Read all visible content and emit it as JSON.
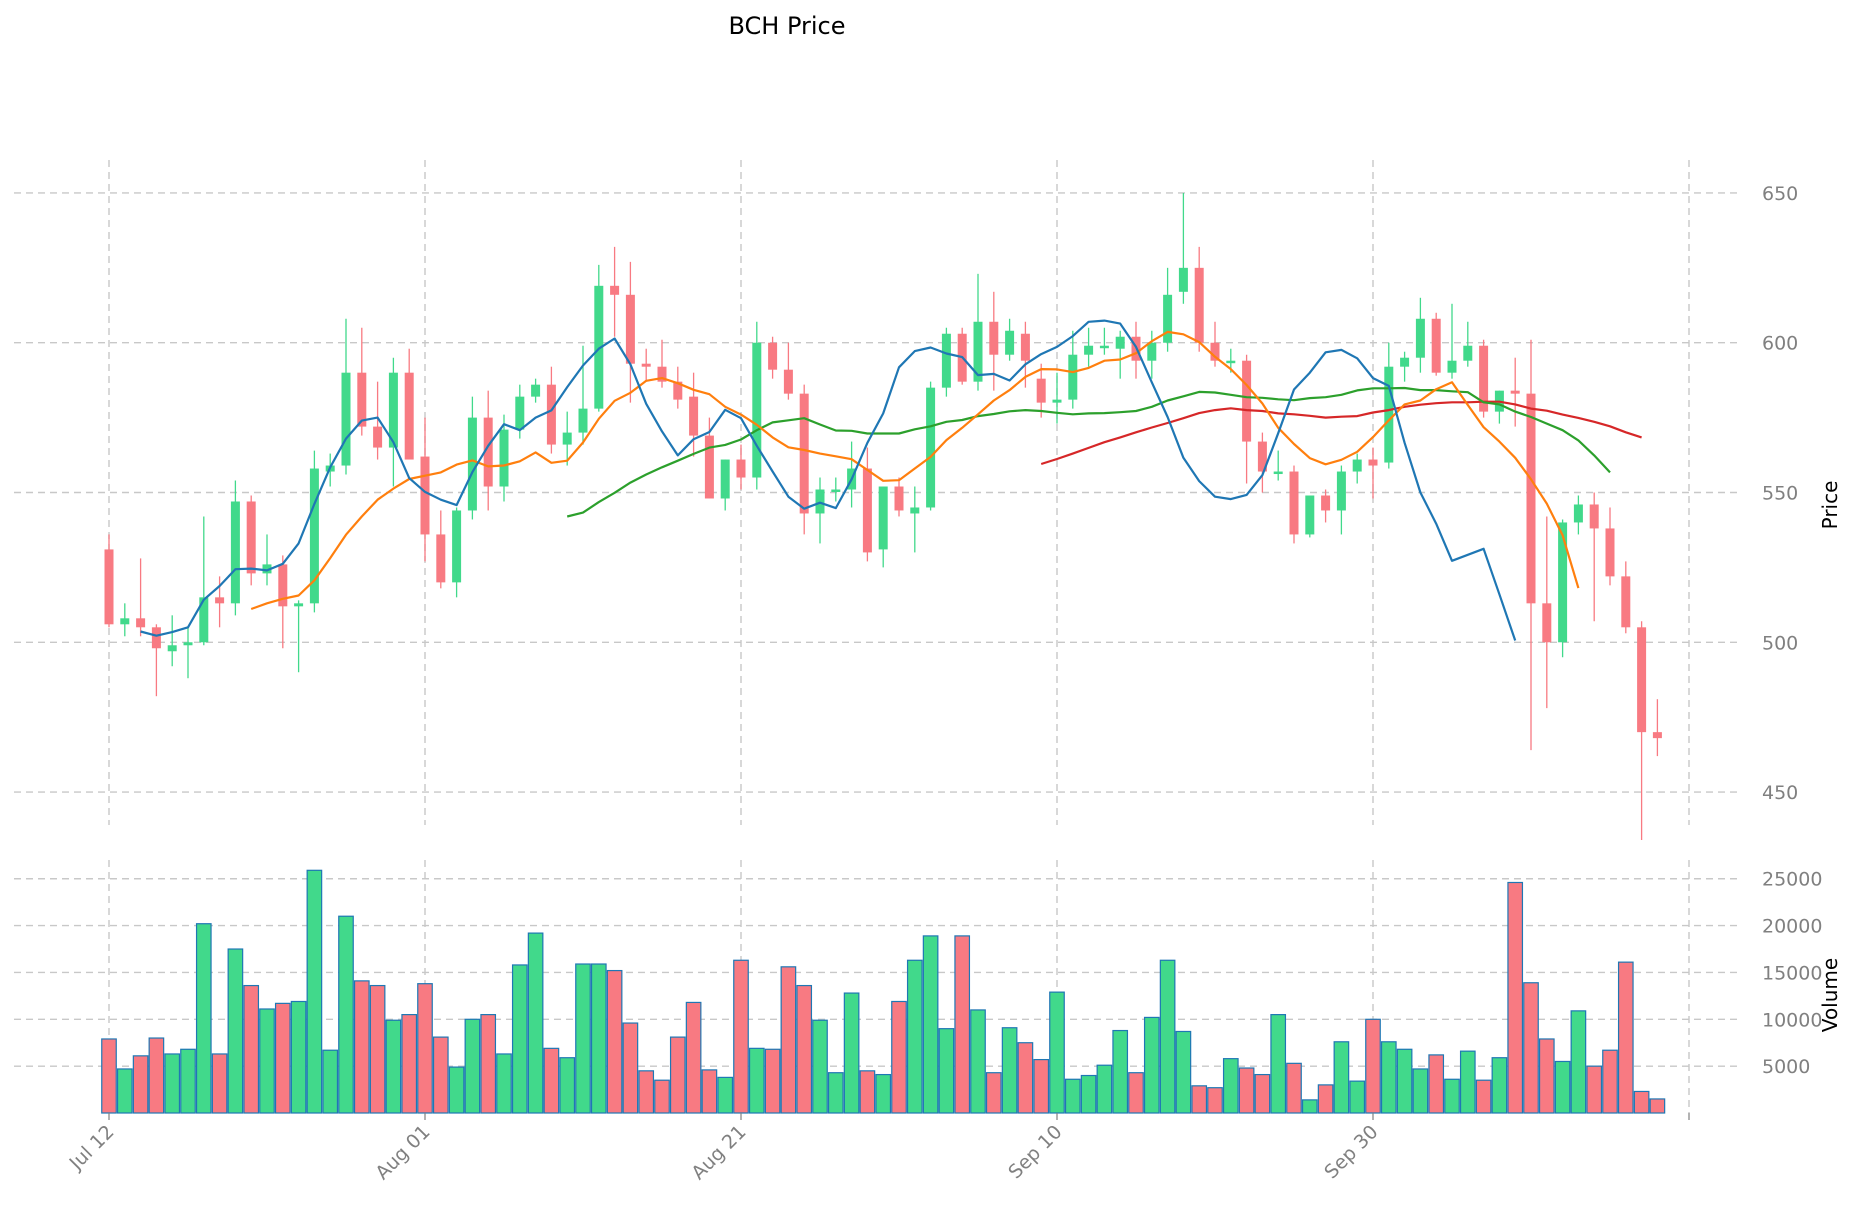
{
  "chart_data": {
    "type": "candlestick",
    "title": "BCH Price",
    "price_panel": {
      "ylabel": "Price",
      "ylim": [
        439,
        661
      ],
      "yticks": [
        450,
        500,
        550,
        600,
        650
      ],
      "ytick_labels": [
        "450",
        "500",
        "550",
        "600",
        "650"
      ]
    },
    "volume_panel": {
      "ylabel": "Volume",
      "ylim": [
        0,
        27000
      ],
      "yticks": [
        5000,
        10000,
        15000,
        20000,
        25000
      ],
      "ytick_labels": [
        "5000",
        "10000",
        "15000",
        "20000",
        "25000"
      ]
    },
    "x_tick_labels": [
      "Jul 12",
      "Aug 01",
      "Aug 21",
      "Sep 10",
      "Sep 30"
    ],
    "x_tick_index": [
      0,
      20,
      40,
      60,
      80
    ],
    "x_range": [
      -1,
      100
    ],
    "grid": true,
    "colors": {
      "up": "#41d98b",
      "down": "#f87a82",
      "volume_edge": "#1f77b4",
      "ma_fast": "#1f77b4",
      "ma_mid": "#ff7f0e",
      "ma_slow": "#2ca02c",
      "ma_long": "#d62728"
    },
    "candles": [
      {
        "d": "Jul 12",
        "o": 531,
        "h": 536,
        "l": 505,
        "c": 506,
        "v": 7900
      },
      {
        "d": "Jul 13",
        "o": 506,
        "h": 513,
        "l": 502,
        "c": 508,
        "v": 4700
      },
      {
        "d": "Jul 14",
        "o": 508,
        "h": 528,
        "l": 502,
        "c": 505,
        "v": 6100
      },
      {
        "d": "Jul 15",
        "o": 505,
        "h": 506,
        "l": 482,
        "c": 498,
        "v": 8000
      },
      {
        "d": "Jul 16",
        "o": 497,
        "h": 509,
        "l": 492,
        "c": 499,
        "v": 6300
      },
      {
        "d": "Jul 17",
        "o": 499,
        "h": 505,
        "l": 488,
        "c": 500,
        "v": 6800
      },
      {
        "d": "Jul 18",
        "o": 500,
        "h": 542,
        "l": 499,
        "c": 515,
        "v": 20200
      },
      {
        "d": "Jul 19",
        "o": 515,
        "h": 522,
        "l": 505,
        "c": 513,
        "v": 6300
      },
      {
        "d": "Jul 20",
        "o": 513,
        "h": 554,
        "l": 509,
        "c": 547,
        "v": 17500
      },
      {
        "d": "Jul 21",
        "o": 547,
        "h": 549,
        "l": 519,
        "c": 523,
        "v": 13600
      },
      {
        "d": "Jul 22",
        "o": 523,
        "h": 536,
        "l": 519,
        "c": 526,
        "v": 11100
      },
      {
        "d": "Jul 23",
        "o": 526,
        "h": 529,
        "l": 498,
        "c": 512,
        "v": 11700
      },
      {
        "d": "Jul 24",
        "o": 512,
        "h": 514,
        "l": 490,
        "c": 513,
        "v": 11900
      },
      {
        "d": "Jul 25",
        "o": 513,
        "h": 564,
        "l": 510,
        "c": 558,
        "v": 25900
      },
      {
        "d": "Jul 26",
        "o": 557,
        "h": 563,
        "l": 552,
        "c": 559,
        "v": 6700
      },
      {
        "d": "Jul 27",
        "o": 559,
        "h": 608,
        "l": 556,
        "c": 590,
        "v": 21000
      },
      {
        "d": "Jul 28",
        "o": 590,
        "h": 605,
        "l": 569,
        "c": 572,
        "v": 14100
      },
      {
        "d": "Jul 29",
        "o": 572,
        "h": 587,
        "l": 561,
        "c": 565,
        "v": 13600
      },
      {
        "d": "Jul 30",
        "o": 565,
        "h": 595,
        "l": 552,
        "c": 590,
        "v": 9900
      },
      {
        "d": "Jul 31",
        "o": 590,
        "h": 598,
        "l": 562,
        "c": 561,
        "v": 10500
      },
      {
        "d": "Aug 01",
        "o": 562,
        "h": 575,
        "l": 527,
        "c": 536,
        "v": 13800
      },
      {
        "d": "Aug 02",
        "o": 536,
        "h": 544,
        "l": 518,
        "c": 520,
        "v": 8100
      },
      {
        "d": "Aug 03",
        "o": 520,
        "h": 545,
        "l": 515,
        "c": 544,
        "v": 4900
      },
      {
        "d": "Aug 04",
        "o": 544,
        "h": 582,
        "l": 541,
        "c": 575,
        "v": 10000
      },
      {
        "d": "Aug 05",
        "o": 575,
        "h": 584,
        "l": 544,
        "c": 552,
        "v": 10500
      },
      {
        "d": "Aug 06",
        "o": 552,
        "h": 576,
        "l": 547,
        "c": 571,
        "v": 6300
      },
      {
        "d": "Aug 07",
        "o": 571,
        "h": 586,
        "l": 568,
        "c": 582,
        "v": 15800
      },
      {
        "d": "Aug 08",
        "o": 582,
        "h": 588,
        "l": 580,
        "c": 586,
        "v": 19200
      },
      {
        "d": "Aug 09",
        "o": 586,
        "h": 592,
        "l": 563,
        "c": 566,
        "v": 6900
      },
      {
        "d": "Aug 10",
        "o": 566,
        "h": 577,
        "l": 559,
        "c": 570,
        "v": 5900
      },
      {
        "d": "Aug 11",
        "o": 570,
        "h": 599,
        "l": 566,
        "c": 578,
        "v": 15900
      },
      {
        "d": "Aug 12",
        "o": 578,
        "h": 626,
        "l": 577,
        "c": 619,
        "v": 15900
      },
      {
        "d": "Aug 13",
        "o": 619,
        "h": 632,
        "l": 602,
        "c": 616,
        "v": 15200
      },
      {
        "d": "Aug 14",
        "o": 616,
        "h": 627,
        "l": 580,
        "c": 593,
        "v": 9600
      },
      {
        "d": "Aug 15",
        "o": 593,
        "h": 598,
        "l": 587,
        "c": 592,
        "v": 4500
      },
      {
        "d": "Aug 16",
        "o": 592,
        "h": 601,
        "l": 585,
        "c": 587,
        "v": 3500
      },
      {
        "d": "Aug 17",
        "o": 587,
        "h": 592,
        "l": 578,
        "c": 581,
        "v": 8100
      },
      {
        "d": "Aug 18",
        "o": 582,
        "h": 590,
        "l": 562,
        "c": 569,
        "v": 11800
      },
      {
        "d": "Aug 19",
        "o": 569,
        "h": 575,
        "l": 548,
        "c": 548,
        "v": 4600
      },
      {
        "d": "Aug 20",
        "o": 548,
        "h": 561,
        "l": 544,
        "c": 561,
        "v": 3800
      },
      {
        "d": "Aug 21",
        "o": 561,
        "h": 566,
        "l": 551,
        "c": 555,
        "v": 16300
      },
      {
        "d": "Aug 22",
        "o": 555,
        "h": 607,
        "l": 551,
        "c": 600,
        "v": 6900
      },
      {
        "d": "Aug 23",
        "o": 600,
        "h": 602,
        "l": 588,
        "c": 591,
        "v": 6800
      },
      {
        "d": "Aug 24",
        "o": 591,
        "h": 600,
        "l": 581,
        "c": 583,
        "v": 15600
      },
      {
        "d": "Aug 25",
        "o": 583,
        "h": 586,
        "l": 536,
        "c": 543,
        "v": 13600
      },
      {
        "d": "Aug 26",
        "o": 543,
        "h": 555,
        "l": 533,
        "c": 551,
        "v": 9900
      },
      {
        "d": "Aug 27",
        "o": 551,
        "h": 555,
        "l": 547,
        "c": 551,
        "v": 4300
      },
      {
        "d": "Aug 28",
        "o": 551,
        "h": 567,
        "l": 545,
        "c": 558,
        "v": 12800
      },
      {
        "d": "Aug 29",
        "o": 558,
        "h": 565,
        "l": 527,
        "c": 530,
        "v": 4500
      },
      {
        "d": "Aug 30",
        "o": 531,
        "h": 552,
        "l": 525,
        "c": 552,
        "v": 4100
      },
      {
        "d": "Aug 31",
        "o": 552,
        "h": 555,
        "l": 542,
        "c": 544,
        "v": 11900
      },
      {
        "d": "Sep 01",
        "o": 543,
        "h": 552,
        "l": 530,
        "c": 545,
        "v": 16300
      },
      {
        "d": "Sep 02",
        "o": 545,
        "h": 587,
        "l": 544,
        "c": 585,
        "v": 18900
      },
      {
        "d": "Sep 03",
        "o": 585,
        "h": 605,
        "l": 582,
        "c": 603,
        "v": 9000
      },
      {
        "d": "Sep 04",
        "o": 603,
        "h": 605,
        "l": 586,
        "c": 587,
        "v": 18900
      },
      {
        "d": "Sep 05",
        "o": 587,
        "h": 623,
        "l": 584,
        "c": 607,
        "v": 11000
      },
      {
        "d": "Sep 06",
        "o": 607,
        "h": 617,
        "l": 584,
        "c": 596,
        "v": 4300
      },
      {
        "d": "Sep 07",
        "o": 596,
        "h": 608,
        "l": 594,
        "c": 604,
        "v": 9100
      },
      {
        "d": "Sep 08",
        "o": 603,
        "h": 607,
        "l": 585,
        "c": 594,
        "v": 7500
      },
      {
        "d": "Sep 09",
        "o": 588,
        "h": 593,
        "l": 575,
        "c": 580,
        "v": 5700
      },
      {
        "d": "Sep 10",
        "o": 580,
        "h": 590,
        "l": 573,
        "c": 581,
        "v": 12900
      },
      {
        "d": "Sep 11",
        "o": 581,
        "h": 604,
        "l": 578,
        "c": 596,
        "v": 3600
      },
      {
        "d": "Sep 12",
        "o": 596,
        "h": 605,
        "l": 592,
        "c": 599,
        "v": 4000
      },
      {
        "d": "Sep 13",
        "o": 599,
        "h": 605,
        "l": 596,
        "c": 599,
        "v": 5100
      },
      {
        "d": "Sep 14",
        "o": 598,
        "h": 604,
        "l": 588,
        "c": 602,
        "v": 8800
      },
      {
        "d": "Sep 15",
        "o": 602,
        "h": 607,
        "l": 588,
        "c": 594,
        "v": 4300
      },
      {
        "d": "Sep 16",
        "o": 594,
        "h": 604,
        "l": 588,
        "c": 600,
        "v": 10200
      },
      {
        "d": "Sep 17",
        "o": 600,
        "h": 625,
        "l": 597,
        "c": 616,
        "v": 16300
      },
      {
        "d": "Sep 18",
        "o": 617,
        "h": 650,
        "l": 613,
        "c": 625,
        "v": 8700
      },
      {
        "d": "Sep 19",
        "o": 625,
        "h": 632,
        "l": 597,
        "c": 600,
        "v": 2900
      },
      {
        "d": "Sep 20",
        "o": 600,
        "h": 607,
        "l": 592,
        "c": 594,
        "v": 2700
      },
      {
        "d": "Sep 21",
        "o": 594,
        "h": 598,
        "l": 590,
        "c": 594,
        "v": 5800
      },
      {
        "d": "Sep 22",
        "o": 594,
        "h": 596,
        "l": 553,
        "c": 567,
        "v": 4800
      },
      {
        "d": "Sep 23",
        "o": 567,
        "h": 570,
        "l": 550,
        "c": 557,
        "v": 4100
      },
      {
        "d": "Sep 24",
        "o": 557,
        "h": 564,
        "l": 554,
        "c": 557,
        "v": 10500
      },
      {
        "d": "Sep 25",
        "o": 557,
        "h": 559,
        "l": 533,
        "c": 536,
        "v": 5300
      },
      {
        "d": "Sep 26",
        "o": 536,
        "h": 549,
        "l": 535,
        "c": 549,
        "v": 1400
      },
      {
        "d": "Sep 27",
        "o": 549,
        "h": 551,
        "l": 540,
        "c": 544,
        "v": 3000
      },
      {
        "d": "Sep 28",
        "o": 544,
        "h": 559,
        "l": 536,
        "c": 557,
        "v": 7600
      },
      {
        "d": "Sep 29",
        "o": 557,
        "h": 563,
        "l": 553,
        "c": 561,
        "v": 3400
      },
      {
        "d": "Sep 30",
        "o": 561,
        "h": 565,
        "l": 548,
        "c": 559,
        "v": 10000
      },
      {
        "d": "Oct 01",
        "o": 560,
        "h": 600,
        "l": 558,
        "c": 592,
        "v": 7600
      },
      {
        "d": "Oct 02",
        "o": 592,
        "h": 597,
        "l": 587,
        "c": 595,
        "v": 6800
      },
      {
        "d": "Oct 03",
        "o": 595,
        "h": 615,
        "l": 590,
        "c": 608,
        "v": 4700
      },
      {
        "d": "Oct 04",
        "o": 608,
        "h": 610,
        "l": 589,
        "c": 590,
        "v": 6200
      },
      {
        "d": "Oct 05",
        "o": 590,
        "h": 613,
        "l": 588,
        "c": 594,
        "v": 3600
      },
      {
        "d": "Oct 06",
        "o": 594,
        "h": 607,
        "l": 592,
        "c": 599,
        "v": 6600
      },
      {
        "d": "Oct 07",
        "o": 599,
        "h": 601,
        "l": 575,
        "c": 577,
        "v": 3500
      },
      {
        "d": "Oct 08",
        "o": 577,
        "h": 584,
        "l": 573,
        "c": 584,
        "v": 5900
      },
      {
        "d": "Oct 09",
        "o": 584,
        "h": 595,
        "l": 572,
        "c": 583,
        "v": 24600
      },
      {
        "d": "Oct 10",
        "o": 583,
        "h": 601,
        "l": 464,
        "c": 513,
        "v": 13900
      },
      {
        "d": "Oct 11",
        "o": 513,
        "h": 542,
        "l": 478,
        "c": 500,
        "v": 7900
      },
      {
        "d": "Oct 12",
        "o": 500,
        "h": 541,
        "l": 495,
        "c": 540,
        "v": 5500
      },
      {
        "d": "Oct 13",
        "o": 540,
        "h": 549,
        "l": 536,
        "c": 546,
        "v": 10900
      },
      {
        "d": "Oct 14",
        "o": 546,
        "h": 550,
        "l": 507,
        "c": 538,
        "v": 5000
      },
      {
        "d": "Oct 15",
        "o": 538,
        "h": 545,
        "l": 519,
        "c": 522,
        "v": 6700
      },
      {
        "d": "Oct 16",
        "o": 522,
        "h": 527,
        "l": 503,
        "c": 505,
        "v": 16100
      },
      {
        "d": "Oct 17",
        "o": 505,
        "h": 507,
        "l": 434,
        "c": 470,
        "v": 2300
      },
      {
        "d": "Oct 18",
        "o": 470,
        "h": 481,
        "l": 462,
        "c": 468,
        "v": 1500
      }
    ],
    "ma_fast": {
      "start": 2,
      "values": [
        503.6,
        502.2,
        503.4,
        505.0,
        514.2,
        518.8,
        524.4,
        524.6,
        524.0,
        526.2,
        533.0,
        546.2,
        558.4,
        568.0,
        574.0,
        575.0,
        566.8,
        554.8,
        550.2,
        547.6,
        545.8,
        556.8,
        565.6,
        572.8,
        570.8,
        575.0,
        577.4,
        585.2,
        592.4,
        598.0,
        601.4,
        592.8,
        579.6,
        570.4,
        562.4,
        567.8,
        570.2,
        577.6,
        574.8,
        565.6,
        557.0,
        548.6,
        544.6,
        546.6,
        544.8,
        554.4,
        566.6,
        576.4,
        591.8,
        597.2,
        598.4,
        596.4,
        595.2,
        589.2,
        589.6,
        587.4,
        592.8,
        596.2,
        598.6,
        602.2,
        607.0,
        607.4,
        606.4,
        598.6,
        586.8,
        575.2,
        561.6,
        553.8,
        548.6,
        547.8,
        549.2,
        555.8,
        569.8,
        584.4,
        590.0,
        596.8,
        597.6,
        594.8,
        588.2,
        585.6,
        566.6,
        550.0,
        539.6,
        527.2,
        529.2,
        531.2,
        516.0,
        500.6
      ]
    },
    "ma_mid": {
      "start": 9,
      "values": [
        511.1,
        513.0,
        514.5,
        515.6,
        520.7,
        528.1,
        535.9,
        542.0,
        547.6,
        551.3,
        554.5,
        555.6,
        556.7,
        559.3,
        560.7,
        558.7,
        559.0,
        560.4,
        563.4,
        559.9,
        560.6,
        566.7,
        574.6,
        580.6,
        583.3,
        587.3,
        588.2,
        586.5,
        584.3,
        582.8,
        578.6,
        576.0,
        572.6,
        568.4,
        565.1,
        564.2,
        563.0,
        562.1,
        561.1,
        557.5,
        553.9,
        554.1,
        558.0,
        561.9,
        567.5,
        571.6,
        576.1,
        580.7,
        584.2,
        588.6,
        591.2,
        591.1,
        590.2,
        591.6,
        594.0,
        594.4,
        596.5,
        600.5,
        603.6,
        602.8,
        600.2,
        595.3,
        591.2,
        585.9,
        579.7,
        571.6,
        566.2,
        561.5,
        559.4,
        560.9,
        563.6,
        568.5,
        574.1,
        579.4,
        580.7,
        584.5,
        586.8,
        579.2,
        571.8,
        567.0,
        561.6,
        554.4,
        546.3,
        535.7,
        518.1
      ]
    },
    "ma_slow": {
      "start": 29,
      "values": [
        542.0,
        543.3,
        546.8,
        549.9,
        553.3,
        556.0,
        558.4,
        560.6,
        562.9,
        565.0,
        565.9,
        567.7,
        570.8,
        573.4,
        574.1,
        574.8,
        572.7,
        570.7,
        570.6,
        569.7,
        569.7,
        569.7,
        571.1,
        572.1,
        573.6,
        574.2,
        575.5,
        576.2,
        577.1,
        577.5,
        577.2,
        576.6,
        576.1,
        576.4,
        576.5,
        576.8,
        577.2,
        578.6,
        580.7,
        582.1,
        583.6,
        583.4,
        582.6,
        581.8,
        581.6,
        581.1,
        580.8,
        581.5,
        581.8,
        582.6,
        584.1,
        584.8,
        584.8,
        584.9,
        584.2,
        584.2,
        583.8,
        583.5,
        580.1,
        579.4,
        577.0,
        575.2,
        573.0,
        570.8,
        567.4,
        562.4,
        556.7
      ]
    },
    "ma_long": {
      "start": 59,
      "values": [
        559.5,
        561.2,
        563.0,
        564.9,
        566.8,
        568.4,
        570.1,
        571.7,
        573.2,
        574.8,
        576.5,
        577.5,
        578.1,
        577.5,
        577.2,
        576.4,
        576.1,
        575.6,
        575.0,
        575.3,
        575.5,
        576.7,
        577.5,
        578.6,
        579.3,
        579.8,
        580.1,
        580.1,
        580.3,
        580.3,
        579.4,
        578.0,
        577.3,
        576.0,
        574.9,
        573.6,
        572.1,
        570.1,
        568.4
      ]
    }
  }
}
